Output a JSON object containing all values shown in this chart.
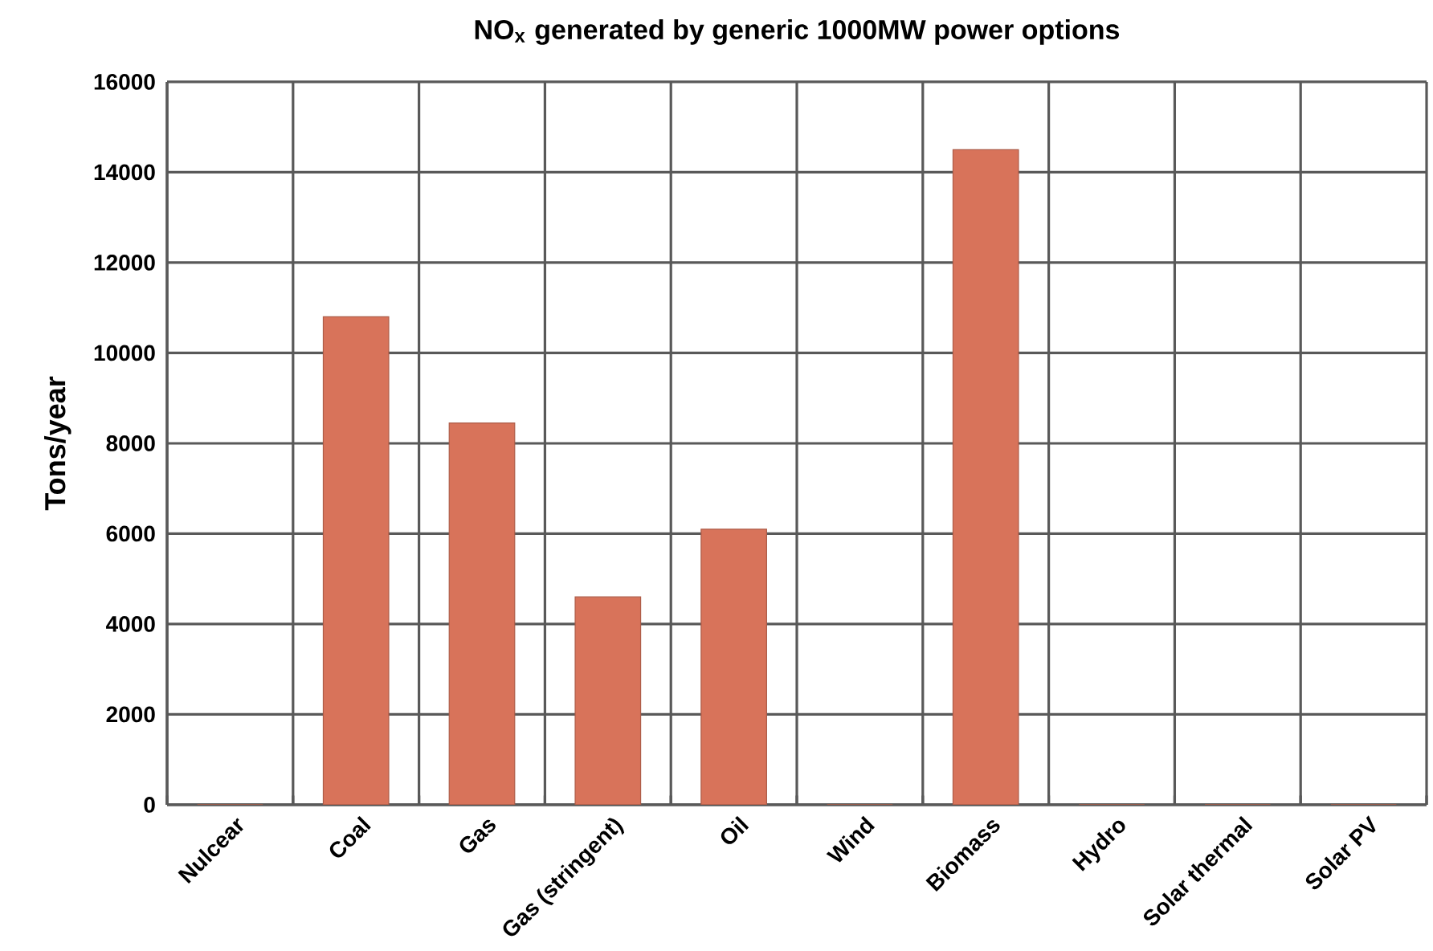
{
  "chart_data": {
    "type": "bar",
    "title": "NO$_{x}$ generated by generic 1000MW power options",
    "ylabel": "Tons/year",
    "categories": [
      "Nulcear",
      "Coal",
      "Gas",
      "Gas (stringent)",
      "Oil",
      "Wind",
      "Biomass",
      "Hydro",
      "Solar thermal",
      "Solar PV"
    ],
    "values": [
      0,
      10800,
      8450,
      4600,
      6100,
      0,
      14500,
      0,
      0,
      0
    ],
    "color": "#d8735a",
    "ylim": [
      0,
      16000
    ],
    "yticks": [
      0,
      2000,
      4000,
      6000,
      8000,
      10000,
      12000,
      14000,
      16000
    ],
    "grid": true
  }
}
